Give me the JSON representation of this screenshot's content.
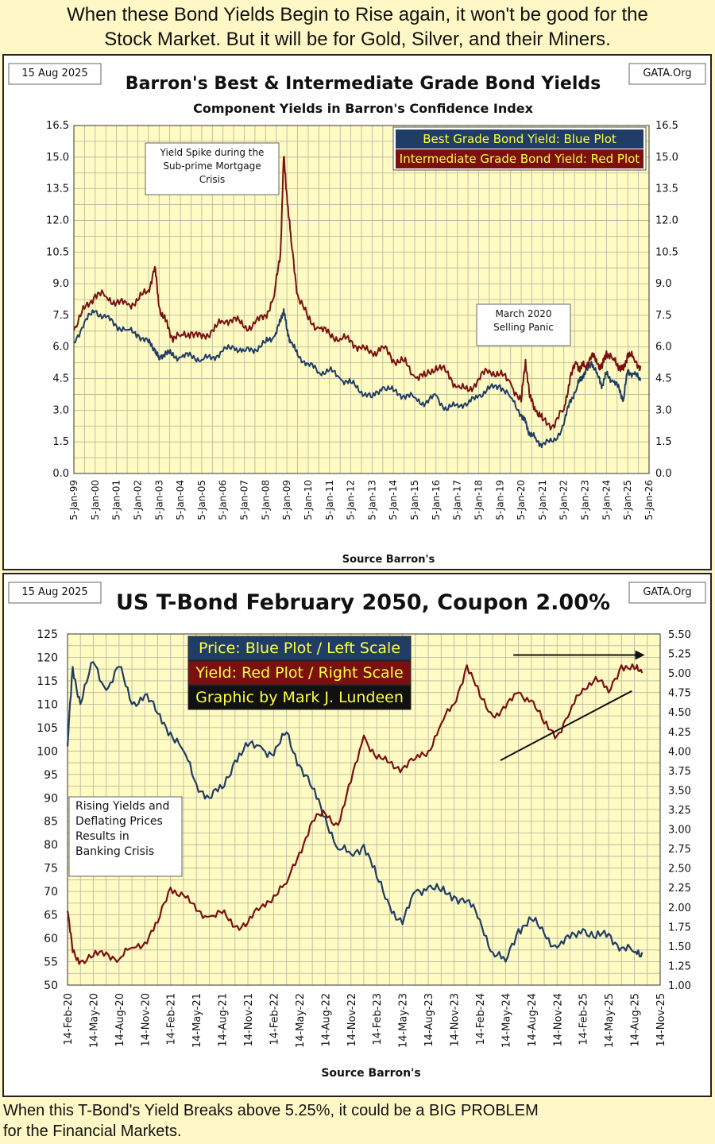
{
  "header": {
    "line1": "When these Bond Yields Begin to Rise again, it won't be good for the",
    "line2": "Stock Market. But it will be for Gold, Silver, and their Miners."
  },
  "footer": {
    "line1": "When this T-Bond's Yield Breaks above 5.25%, it could be a BIG PROBLEM",
    "line2": "for the Financial Markets."
  },
  "colors": {
    "background": "#fff8c6",
    "plot_bg": "#fffbc2",
    "blue": "#1f3d66",
    "red": "#7a1010",
    "grid": "#b3b3a0"
  },
  "chart_data": [
    {
      "type": "line",
      "date_box": "15 Aug 2025",
      "source_box": "GATA.Org",
      "title": "Barron's Best & Intermediate Grade Bond Yields",
      "subtitle": "Component Yields in Barron's Confidence Index",
      "xlabel": "Source Barron's",
      "ylim": [
        0,
        16.5
      ],
      "yticks": [
        "0.0",
        "1.5",
        "3.0",
        "4.5",
        "6.0",
        "7.5",
        "9.0",
        "10.5",
        "12.0",
        "13.5",
        "15.0",
        "16.5"
      ],
      "xticks": [
        "5-Jan-99",
        "5-Jan-00",
        "5-Jan-01",
        "5-Jan-02",
        "5-Jan-03",
        "5-Jan-04",
        "5-Jan-05",
        "5-Jan-06",
        "5-Jan-07",
        "5-Jan-08",
        "5-Jan-09",
        "5-Jan-10",
        "5-Jan-11",
        "5-Jan-12",
        "5-Jan-13",
        "5-Jan-14",
        "5-Jan-15",
        "5-Jan-16",
        "5-Jan-17",
        "5-Jan-18",
        "5-Jan-19",
        "5-Jan-20",
        "5-Jan-21",
        "5-Jan-22",
        "5-Jan-23",
        "5-Jan-24",
        "5-Jan-25",
        "5-Jan-26"
      ],
      "legend": [
        "Best Grade Bond Yield: Blue Plot",
        "Intermediate Grade Bond Yield: Red Plot"
      ],
      "annotations": [
        {
          "lines": [
            "Yield Spike during the",
            "Sub-prime Mortgage",
            "Crisis"
          ]
        },
        {
          "lines": [
            "March 2020",
            "Selling Panic"
          ]
        }
      ],
      "x": [
        1999.0,
        1999.5,
        2000.0,
        2000.5,
        2001.0,
        2001.5,
        2002.0,
        2002.5,
        2002.8,
        2003.0,
        2003.3,
        2003.6,
        2004.0,
        2004.5,
        2005.0,
        2005.5,
        2006.0,
        2006.5,
        2007.0,
        2007.5,
        2008.0,
        2008.4,
        2008.7,
        2008.85,
        2009.0,
        2009.2,
        2009.5,
        2010.0,
        2010.5,
        2011.0,
        2011.5,
        2012.0,
        2012.5,
        2013.0,
        2013.5,
        2014.0,
        2014.5,
        2015.0,
        2015.5,
        2016.0,
        2016.5,
        2017.0,
        2017.5,
        2018.0,
        2018.5,
        2019.0,
        2019.5,
        2020.0,
        2020.2,
        2020.4,
        2020.7,
        2021.0,
        2021.5,
        2022.0,
        2022.3,
        2022.6,
        2022.8,
        2023.0,
        2023.3,
        2023.6,
        2023.8,
        2024.0,
        2024.3,
        2024.6,
        2024.8,
        2025.0,
        2025.3,
        2025.6
      ],
      "series": [
        {
          "name": "Best Grade Bond Yield",
          "color": "#1f3d66",
          "values": [
            6.2,
            7.2,
            7.7,
            7.4,
            7.0,
            6.8,
            6.6,
            6.2,
            5.9,
            5.4,
            5.8,
            5.6,
            5.5,
            5.6,
            5.4,
            5.5,
            5.8,
            6.0,
            5.8,
            5.9,
            6.2,
            6.5,
            7.2,
            7.8,
            6.8,
            6.2,
            5.6,
            5.2,
            4.8,
            4.9,
            4.5,
            4.3,
            3.9,
            3.6,
            4.1,
            3.9,
            3.7,
            3.6,
            3.3,
            3.7,
            3.0,
            3.3,
            3.3,
            3.7,
            4.0,
            4.2,
            3.6,
            2.8,
            2.4,
            1.9,
            1.6,
            1.4,
            1.5,
            2.3,
            3.5,
            4.0,
            4.6,
            4.7,
            5.3,
            4.6,
            4.2,
            4.7,
            4.4,
            4.0,
            3.5,
            4.9,
            4.7,
            4.4
          ]
        },
        {
          "name": "Intermediate Grade Bond Yield",
          "color": "#7a1010",
          "values": [
            6.8,
            7.8,
            8.5,
            8.4,
            8.1,
            8.0,
            8.2,
            8.7,
            9.8,
            7.9,
            7.2,
            6.5,
            6.5,
            6.7,
            6.4,
            6.8,
            7.2,
            7.4,
            6.9,
            7.1,
            7.5,
            8.4,
            10.5,
            15.0,
            13.2,
            11.0,
            8.5,
            7.3,
            6.9,
            6.6,
            6.4,
            6.3,
            5.9,
            5.7,
            6.0,
            5.4,
            5.3,
            4.6,
            4.6,
            5.1,
            4.8,
            4.1,
            3.9,
            4.5,
            4.9,
            4.7,
            4.3,
            3.4,
            5.4,
            3.6,
            3.0,
            2.5,
            2.3,
            3.0,
            4.6,
            5.2,
            5.0,
            5.1,
            5.6,
            5.2,
            5.0,
            5.8,
            5.4,
            5.1,
            4.9,
            5.7,
            5.4,
            5.1
          ]
        }
      ]
    },
    {
      "type": "line",
      "date_box": "15 Aug 2025",
      "source_box": "GATA.Org",
      "title": "US T-Bond February 2050, Coupon 2.00%",
      "xlabel": "Source Barron's",
      "ylim_left": [
        50,
        125
      ],
      "ylim_right": [
        1.0,
        5.5
      ],
      "yticks_left": [
        "50",
        "55",
        "60",
        "65",
        "70",
        "75",
        "80",
        "85",
        "90",
        "95",
        "100",
        "105",
        "110",
        "115",
        "120",
        "125"
      ],
      "yticks_right": [
        "1.00",
        "1.25",
        "1.50",
        "1.75",
        "2.00",
        "2.25",
        "2.50",
        "2.75",
        "3.00",
        "3.25",
        "3.50",
        "3.75",
        "4.00",
        "4.25",
        "4.50",
        "4.75",
        "5.00",
        "5.25",
        "5.50"
      ],
      "xticks": [
        "14-Feb-20",
        "14-May-20",
        "14-Aug-20",
        "14-Nov-20",
        "14-Feb-21",
        "14-May-21",
        "14-Aug-21",
        "14-Nov-21",
        "14-Feb-22",
        "14-May-22",
        "14-Aug-22",
        "14-Nov-22",
        "14-Feb-23",
        "14-May-23",
        "14-Aug-23",
        "14-Nov-23",
        "14-Feb-24",
        "14-May-24",
        "14-Aug-24",
        "14-Nov-24",
        "14-Feb-25",
        "14-May-25",
        "14-Aug-25",
        "14-Nov-25"
      ],
      "legend": [
        "Price:  Blue Plot / Left Scale",
        "Yield:  Red Plot / Right Scale",
        "Graphic by Mark J. Lundeen"
      ],
      "annotation": [
        "Rising Yields and",
        "Deflating Prices",
        "Results in",
        "Banking Crisis"
      ],
      "x": [
        0,
        0.2,
        0.5,
        1,
        1.5,
        2,
        2.5,
        3,
        3.5,
        4,
        4.5,
        5,
        5.5,
        6,
        6.5,
        7,
        7.5,
        8,
        8.5,
        9,
        9.5,
        10,
        10.5,
        11,
        11.5,
        12,
        12.5,
        13,
        13.5,
        14,
        14.5,
        15,
        15.5,
        16,
        16.5,
        17,
        17.5,
        18,
        18.5,
        19,
        19.5,
        20,
        20.5,
        21,
        21.5,
        22,
        22.3
      ],
      "series": [
        {
          "name": "Price",
          "axis": "left",
          "color": "#1f3d66",
          "values": [
            101,
            118,
            110,
            119,
            113,
            118,
            110,
            112,
            108,
            104,
            100,
            93,
            90,
            92,
            98,
            101,
            101,
            99,
            104,
            97,
            92,
            86,
            79,
            78,
            80,
            73,
            67,
            63,
            70,
            71,
            70,
            69,
            68,
            64,
            57,
            55,
            62,
            64,
            61,
            58,
            60,
            62,
            60,
            61,
            58,
            57,
            57
          ]
        },
        {
          "name": "Yield",
          "axis": "right",
          "color": "#7a1010",
          "values": [
            1.95,
            1.42,
            1.3,
            1.37,
            1.42,
            1.33,
            1.48,
            1.55,
            1.8,
            2.25,
            2.15,
            1.95,
            1.88,
            1.92,
            1.75,
            1.8,
            2.0,
            2.15,
            2.3,
            2.7,
            3.1,
            3.2,
            3.05,
            3.6,
            4.2,
            3.9,
            3.85,
            3.78,
            3.9,
            4.0,
            4.35,
            4.6,
            5.1,
            4.7,
            4.45,
            4.55,
            4.75,
            4.65,
            4.35,
            4.2,
            4.5,
            4.8,
            4.95,
            4.75,
            5.1,
            5.05,
            5.0
          ]
        }
      ],
      "resistance_line": [
        [
          17.3,
          5.23
        ],
        [
          22.4,
          5.23
        ]
      ],
      "trend_line": [
        [
          16.8,
          3.88
        ],
        [
          21.9,
          4.77
        ]
      ]
    }
  ]
}
